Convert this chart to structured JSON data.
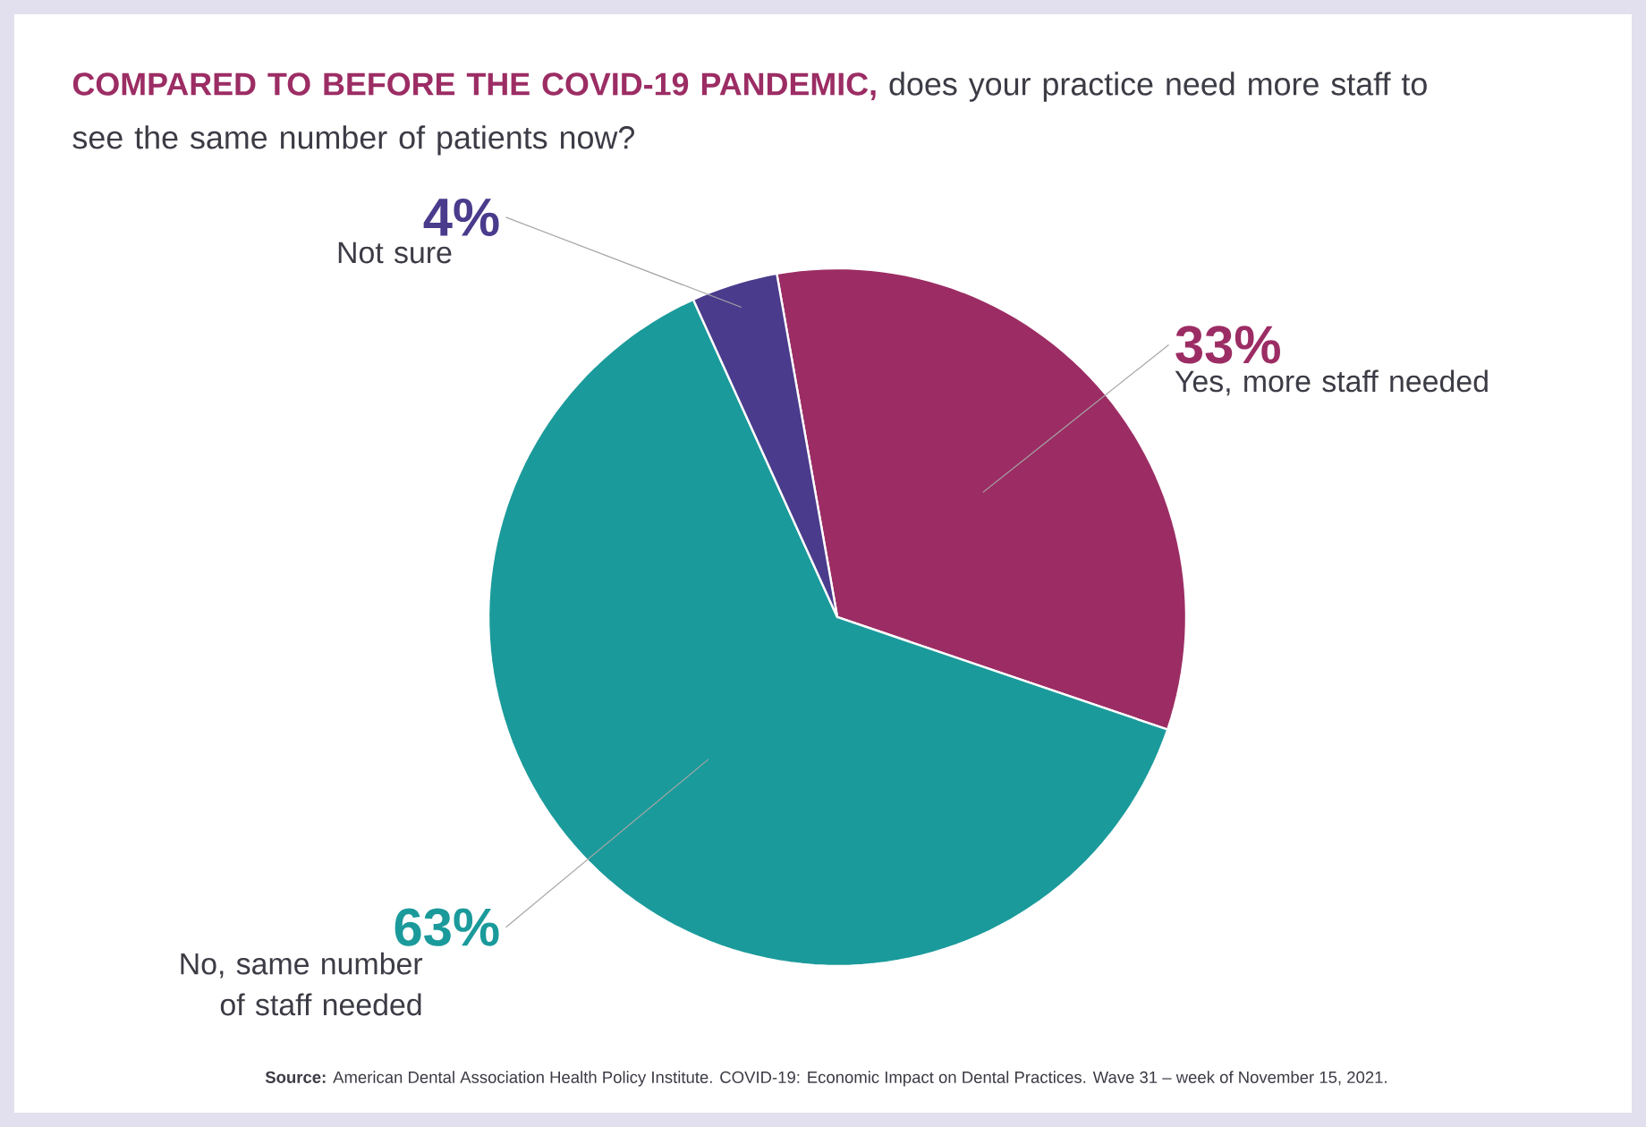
{
  "chart_data": {
    "type": "pie",
    "title": "COMPARED TO BEFORE THE COVID-19 PANDEMIC,",
    "subtitle": "does your practice need more staff to see the same number of patients now?",
    "categories": [
      "Yes, more staff needed",
      "No, same number of staff needed",
      "Not sure"
    ],
    "values": [
      33,
      63,
      4
    ],
    "colors": [
      "#9c2d64",
      "#1b9a9b",
      "#4a3b8c"
    ],
    "value_labels": [
      "33%",
      "63%",
      "4%"
    ],
    "annotations": [
      "**Source:** American Dental Association Health Policy Institute. COVID-19: Economic Impact on Dental Practices. Wave 31 – week of November 15, 2021."
    ]
  }
}
